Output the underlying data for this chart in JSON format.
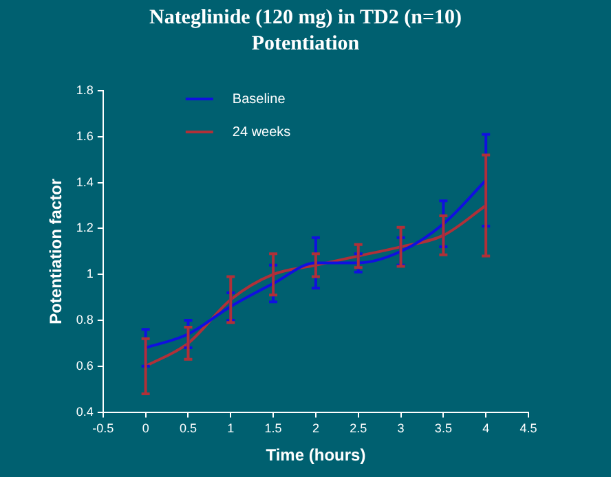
{
  "chart_data": {
    "type": "line",
    "title": "Nateglinide (120 mg) in TD2 (n=10)",
    "subtitle": "Potentiation",
    "xlabel": "Time (hours)",
    "ylabel": "Potentiation factor",
    "x": [
      0,
      0.5,
      1,
      1.5,
      2,
      2.5,
      3,
      3.5,
      4
    ],
    "series": [
      {
        "name": "Baseline",
        "color": "#1010e0",
        "values": [
          0.68,
          0.74,
          0.86,
          0.96,
          1.05,
          1.05,
          1.1,
          1.22,
          1.41
        ],
        "errors": [
          0.08,
          0.06,
          0.06,
          0.08,
          0.11,
          0.04,
          0.06,
          0.1,
          0.2
        ]
      },
      {
        "name": "24 weeks",
        "color": "#b03038",
        "values": [
          0.6,
          0.7,
          0.89,
          1.0,
          1.04,
          1.08,
          1.12,
          1.17,
          1.3
        ],
        "errors": [
          0.12,
          0.07,
          0.1,
          0.09,
          0.05,
          0.05,
          0.085,
          0.085,
          0.22
        ]
      }
    ],
    "xlim": [
      -0.5,
      4.5
    ],
    "xticks": [
      -0.5,
      0,
      0.5,
      1,
      1.5,
      2,
      2.5,
      3,
      3.5,
      4,
      4.5
    ],
    "ylim": [
      0.4,
      1.8
    ],
    "yticks": [
      0.4,
      0.6,
      0.8,
      1,
      1.2,
      1.4,
      1.6,
      1.8
    ],
    "grid": false,
    "legend": "top left",
    "marker": "none",
    "line_style": "solid"
  }
}
